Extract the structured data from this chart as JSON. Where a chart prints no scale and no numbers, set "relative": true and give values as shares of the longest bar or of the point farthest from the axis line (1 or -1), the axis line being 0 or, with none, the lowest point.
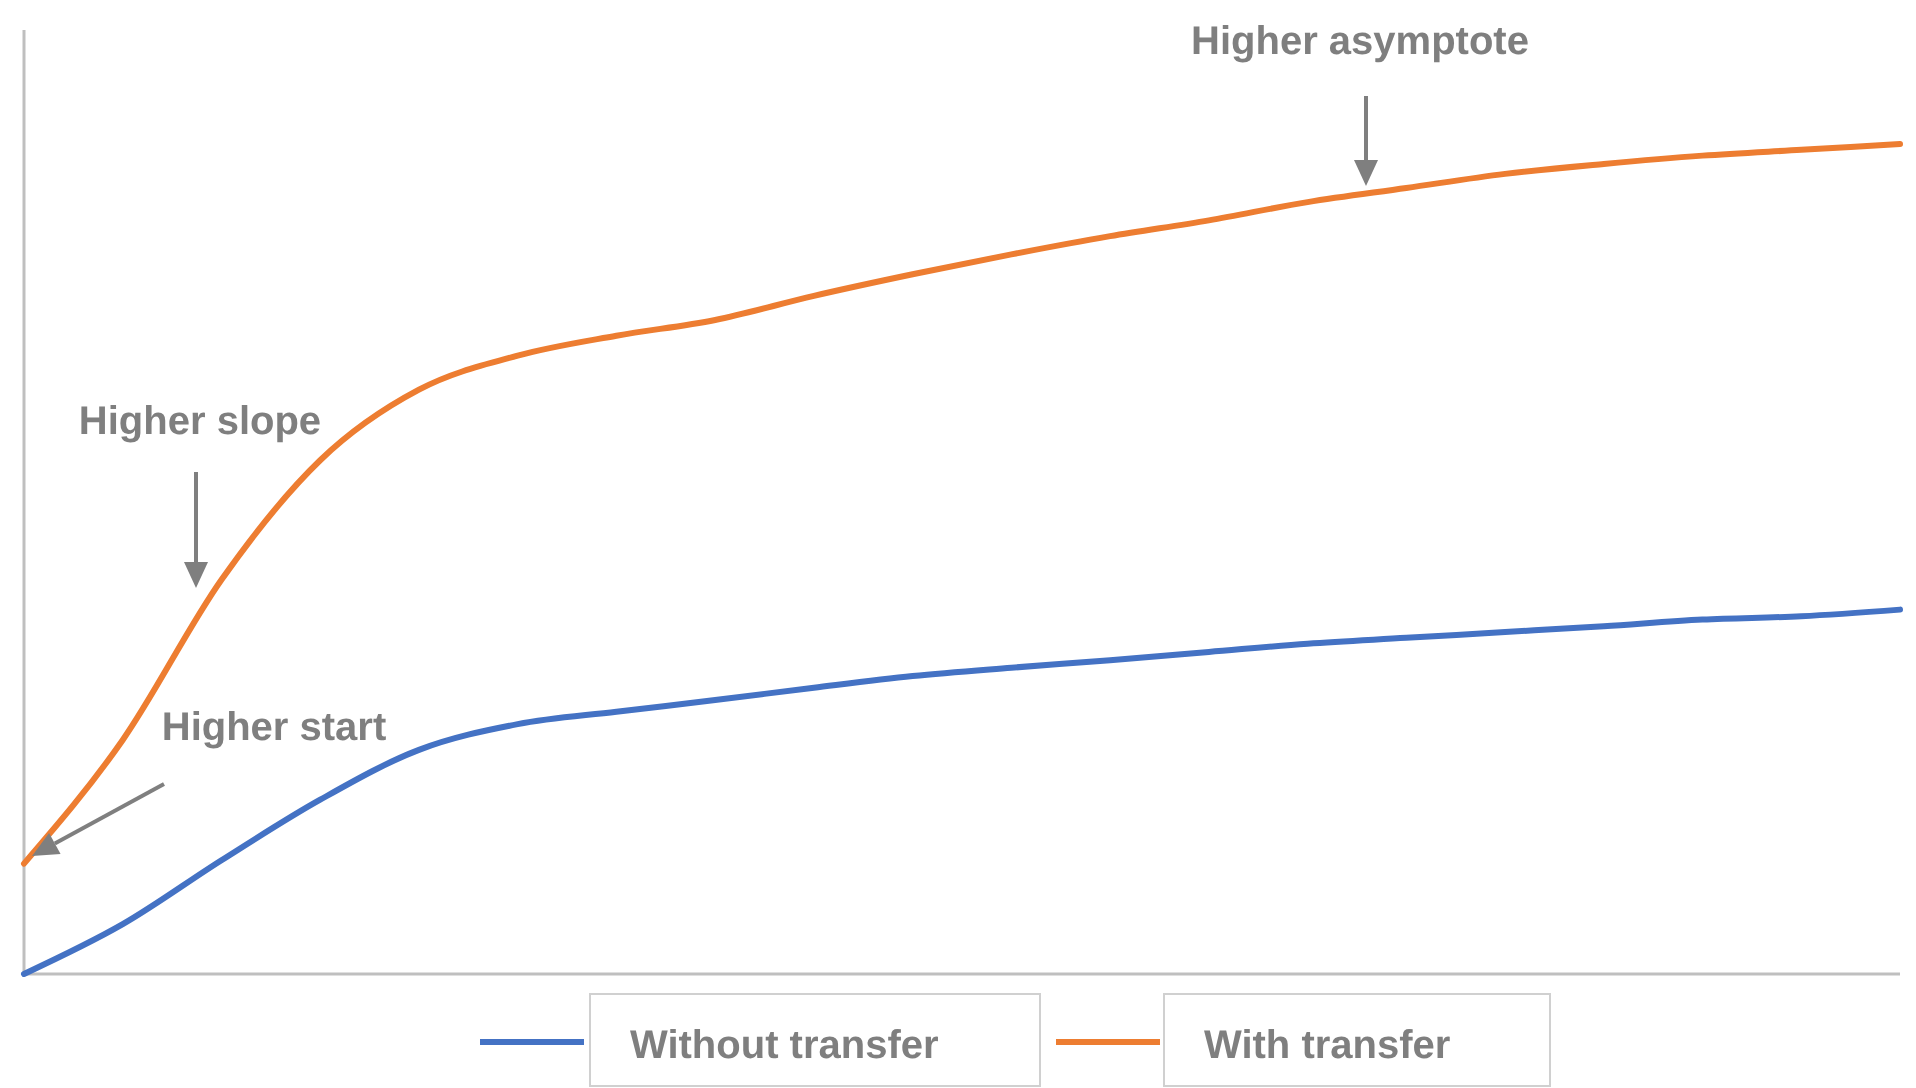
{
  "chart_data": {
    "type": "line",
    "relative": true,
    "categories": [
      null,
      null,
      null,
      null,
      null,
      null,
      null,
      null,
      null,
      null,
      null,
      null,
      null,
      null,
      null,
      null,
      null,
      null,
      null,
      null
    ],
    "series": [
      {
        "name": "Without transfer",
        "color": "#4472c4",
        "values": [
          0,
          0.06,
          0.137,
          0.21,
          0.27,
          0.301,
          0.316,
          0.33,
          0.345,
          0.359,
          0.369,
          0.378,
          0.388,
          0.398,
          0.405,
          0.412,
          0.419,
          0.427,
          0.431,
          0.439
        ]
      },
      {
        "name": "With transfer",
        "color": "#ed7d31",
        "values": [
          0.133,
          0.282,
          0.475,
          0.619,
          0.704,
          0.745,
          0.769,
          0.788,
          0.817,
          0.843,
          0.867,
          0.889,
          0.908,
          0.93,
          0.947,
          0.964,
          0.976,
          0.986,
          0.993,
          1
        ]
      }
    ],
    "annotations": [
      "Higher asymptote",
      "Higher slope",
      "Higher start"
    ],
    "grid": false,
    "legend": "bottom",
    "marker": "none",
    "line_style": "solid"
  }
}
